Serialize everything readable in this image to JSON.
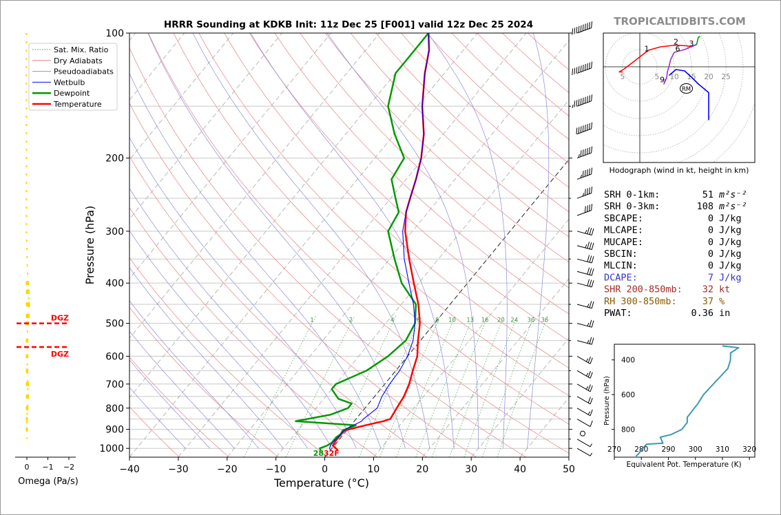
{
  "chart_data": [
    {
      "type": "line",
      "title": "HRRR Sounding at KDKB Init: 11z Dec 25 [F001] valid 12z Dec 25 2024",
      "xlabel": "Temperature (°C)",
      "ylabel": "Pressure (hPa)",
      "xlim": [
        -40,
        50
      ],
      "ylim": [
        1050,
        100
      ],
      "y_scale": "log",
      "skew": "skew-T log-P",
      "x_ticks": [
        "−40",
        "−30",
        "−20",
        "−10",
        "0",
        "10",
        "20",
        "30",
        "40",
        "50"
      ],
      "y_ticks": [
        "100",
        "200",
        "300",
        "400",
        "500",
        "600",
        "700",
        "800",
        "900",
        "1000"
      ],
      "mixing_ratio_labels": [
        "1",
        "2",
        "4",
        "6",
        "8",
        "10",
        "13",
        "16",
        "20",
        "24",
        "30",
        "36"
      ],
      "legend": {
        "placement": "upper-left",
        "entries": [
          {
            "label": "Sat. Mix. Ratio",
            "color": "#2ca02c",
            "style": "dotted"
          },
          {
            "label": "Dry Adiabats",
            "color": "#e08080",
            "style": "solid"
          },
          {
            "label": "Pseudoadiabats",
            "color": "#999999",
            "style": "solid"
          },
          {
            "label": "Wetbulb",
            "color": "#0000ff",
            "style": "solid"
          },
          {
            "label": "Dewpoint",
            "color": "#009900",
            "style": "solid"
          },
          {
            "label": "Temperature",
            "color": "#ff0000",
            "style": "solid"
          }
        ]
      },
      "surface_labels": {
        "dewpoint": "28",
        "temperature": "32F"
      },
      "series": [
        {
          "name": "Temperature",
          "color": "#ff0000",
          "points": [
            [
              1010,
              1.5
            ],
            [
              1000,
              0.8
            ],
            [
              985,
              -0.3
            ],
            [
              960,
              -0.5
            ],
            [
              935,
              -0.5
            ],
            [
              905,
              -0.4
            ],
            [
              880,
              3
            ],
            [
              860,
              6
            ],
            [
              850,
              7
            ],
            [
              800,
              6.5
            ],
            [
              750,
              6
            ],
            [
              700,
              5
            ],
            [
              650,
              3.5
            ],
            [
              600,
              2
            ],
            [
              550,
              -0.5
            ],
            [
              500,
              -3
            ],
            [
              450,
              -6.5
            ],
            [
              400,
              -11
            ],
            [
              350,
              -16
            ],
            [
              300,
              -21.5
            ],
            [
              270,
              -24.5
            ],
            [
              250,
              -26
            ],
            [
              225,
              -28
            ],
            [
              200,
              -30.5
            ],
            [
              175,
              -34
            ],
            [
              150,
              -39
            ],
            [
              125,
              -44
            ],
            [
              110,
              -47
            ],
            [
              100,
              -50
            ]
          ]
        },
        {
          "name": "Dewpoint",
          "color": "#009900",
          "points": [
            [
              1010,
              -2
            ],
            [
              1000,
              -2.5
            ],
            [
              985,
              -1.5
            ],
            [
              970,
              -1
            ],
            [
              960,
              -1
            ],
            [
              940,
              -1
            ],
            [
              925,
              -0.6
            ],
            [
              905,
              -0.8
            ],
            [
              880,
              1
            ],
            [
              860,
              -12
            ],
            [
              830,
              -6
            ],
            [
              800,
              -3.5
            ],
            [
              780,
              -3.5
            ],
            [
              760,
              -7
            ],
            [
              720,
              -10
            ],
            [
              700,
              -10
            ],
            [
              650,
              -6
            ],
            [
              600,
              -4
            ],
            [
              550,
              -3
            ],
            [
              500,
              -4
            ],
            [
              450,
              -7
            ],
            [
              400,
              -13.5
            ],
            [
              350,
              -19
            ],
            [
              300,
              -25
            ],
            [
              270,
              -26
            ],
            [
              250,
              -29
            ],
            [
              225,
              -33
            ],
            [
              200,
              -34
            ],
            [
              175,
              -40
            ],
            [
              150,
              -46
            ],
            [
              125,
              -50
            ],
            [
              110,
              -50
            ],
            [
              100,
              -50
            ]
          ]
        },
        {
          "name": "Wetbulb",
          "color": "#0000ff",
          "points": [
            [
              1010,
              0
            ],
            [
              1000,
              -0.5
            ],
            [
              985,
              -0.8
            ],
            [
              960,
              -0.8
            ],
            [
              935,
              -0.6
            ],
            [
              905,
              -0.6
            ],
            [
              880,
              0.5
            ],
            [
              860,
              1.5
            ],
            [
              850,
              1.5
            ],
            [
              800,
              2.5
            ],
            [
              750,
              1.5
            ],
            [
              700,
              1
            ],
            [
              650,
              0.8
            ],
            [
              600,
              0
            ],
            [
              550,
              -1.5
            ],
            [
              500,
              -4
            ],
            [
              450,
              -7.5
            ],
            [
              400,
              -12
            ],
            [
              350,
              -17
            ],
            [
              300,
              -22
            ],
            [
              270,
              -24.5
            ],
            [
              250,
              -26
            ],
            [
              225,
              -28
            ],
            [
              200,
              -30.5
            ],
            [
              175,
              -34
            ],
            [
              150,
              -39
            ],
            [
              125,
              -44
            ],
            [
              110,
              -47
            ],
            [
              100,
              -50
            ]
          ]
        }
      ],
      "wind_barbs": [
        {
          "p": 100,
          "speed_kt": 115
        },
        {
          "p": 125,
          "speed_kt": 100
        },
        {
          "p": 150,
          "speed_kt": 95
        },
        {
          "p": 175,
          "speed_kt": 80
        },
        {
          "p": 200,
          "speed_kt": 65
        },
        {
          "p": 225,
          "speed_kt": 55
        },
        {
          "p": 250,
          "speed_kt": 45
        },
        {
          "p": 275,
          "speed_kt": 40
        },
        {
          "p": 300,
          "speed_kt": 35
        },
        {
          "p": 325,
          "speed_kt": 35
        },
        {
          "p": 350,
          "speed_kt": 30
        },
        {
          "p": 375,
          "speed_kt": 30
        },
        {
          "p": 400,
          "speed_kt": 30
        },
        {
          "p": 450,
          "speed_kt": 25
        },
        {
          "p": 500,
          "speed_kt": 25
        },
        {
          "p": 550,
          "speed_kt": 25
        },
        {
          "p": 600,
          "speed_kt": 25
        },
        {
          "p": 650,
          "speed_kt": 25
        },
        {
          "p": 700,
          "speed_kt": 25
        },
        {
          "p": 750,
          "speed_kt": 20
        },
        {
          "p": 800,
          "speed_kt": 15
        },
        {
          "p": 850,
          "speed_kt": 10
        },
        {
          "p": 900,
          "speed_kt": 0
        },
        {
          "p": 950,
          "speed_kt": 5
        },
        {
          "p": 1000,
          "speed_kt": 5
        }
      ]
    },
    {
      "type": "line",
      "title": "",
      "xlabel": "Omega (Pa/s)",
      "ylabel": "",
      "x_ticks": [
        "0",
        "−1",
        "−2"
      ],
      "xlim": [
        0.3,
        -2.3
      ],
      "dgz_labels": [
        "DGZ",
        "DGZ"
      ],
      "dgz_levels_hpa": [
        500,
        570
      ],
      "omega_color": "#ffd700",
      "omega_profile": [
        [
          100,
          0.02
        ],
        [
          150,
          0.02
        ],
        [
          200,
          0.02
        ],
        [
          300,
          0.02
        ],
        [
          400,
          -0.05
        ],
        [
          420,
          -0.08
        ],
        [
          450,
          -0.1
        ],
        [
          480,
          -0.08
        ],
        [
          500,
          -0.05
        ],
        [
          550,
          -0.02
        ],
        [
          600,
          -0.02
        ],
        [
          650,
          -0.02
        ],
        [
          700,
          -0.05
        ],
        [
          750,
          -0.05
        ],
        [
          800,
          -0.03
        ],
        [
          850,
          0.0
        ],
        [
          900,
          0.0
        ],
        [
          950,
          0.0
        ]
      ]
    },
    {
      "type": "line",
      "title": "",
      "xlabel": "Equivalent Pot. Temperature (K)",
      "ylabel": "Pressure (hPa)",
      "xlim": [
        270,
        322
      ],
      "ylim": [
        960,
        310
      ],
      "x_ticks": [
        "270",
        "280",
        "290",
        "300",
        "310",
        "320"
      ],
      "y_ticks": [
        "400",
        "600",
        "800"
      ],
      "series": [
        {
          "name": "",
          "color": "#3a9ab0",
          "points": [
            [
              310,
              320
            ],
            [
              316,
              330
            ],
            [
              313,
              360
            ],
            [
              313,
              400
            ],
            [
              312,
              450
            ],
            [
              309,
              500
            ],
            [
              306,
              550
            ],
            [
              303,
              600
            ],
            [
              301,
              650
            ],
            [
              299,
              690
            ],
            [
              297,
              730
            ],
            [
              297,
              760
            ],
            [
              295,
              800
            ],
            [
              291,
              830
            ],
            [
              287,
              845
            ],
            [
              288,
              880
            ],
            [
              282,
              885
            ],
            [
              281,
              900
            ],
            [
              280,
              920
            ],
            [
              279,
              940
            ],
            [
              278,
              955
            ]
          ]
        }
      ]
    },
    {
      "type": "line",
      "title": "Hodograph (wind in kt, height in km)",
      "ring_labels": [
        "5",
        "10",
        "15",
        "20",
        "25"
      ],
      "height_labels": [
        {
          "label": "1",
          "u": 2,
          "v": 4.5
        },
        {
          "label": "2",
          "u": 10.5,
          "v": 6.5
        },
        {
          "label": "3",
          "u": 15,
          "v": 6
        },
        {
          "label": "6",
          "u": 11,
          "v": 4.5
        },
        {
          "label": "9",
          "u": 6.5,
          "v": -4.5
        }
      ],
      "storm_motion_label": "RM",
      "storm_motion": {
        "u": 13.5,
        "v": -6.3
      },
      "segments": [
        {
          "color": "#ff0000",
          "points": [
            [
              -5,
              -1.5
            ],
            [
              -6,
              -1.5
            ],
            [
              -4.5,
              -0.6
            ],
            [
              2.5,
              4.8
            ],
            [
              6,
              5.8
            ],
            [
              10.5,
              6.3
            ],
            [
              13.5,
              6.1
            ],
            [
              15,
              5.8
            ]
          ]
        },
        {
          "color": "#009900",
          "points": [
            [
              15,
              5.8
            ],
            [
              16.5,
              6.5
            ],
            [
              17,
              8.6
            ],
            [
              17.5,
              8.8
            ]
          ]
        },
        {
          "color": "#9932cc",
          "points": [
            [
              16.5,
              6.5
            ],
            [
              13,
              5
            ],
            [
              10,
              4.2
            ],
            [
              9,
              2.2
            ],
            [
              8.5,
              0.2
            ],
            [
              8,
              -1.5
            ],
            [
              7.8,
              -3.2
            ],
            [
              7,
              -5
            ],
            [
              7.5,
              -3.5
            ]
          ]
        },
        {
          "color": "#0000ff",
          "points": [
            [
              8.5,
              -2.5
            ],
            [
              10.5,
              -0.8
            ],
            [
              13,
              -1.2
            ],
            [
              15,
              -3
            ],
            [
              17,
              -5
            ],
            [
              20,
              -7.5
            ],
            [
              20,
              -15.5
            ]
          ]
        }
      ]
    }
  ],
  "site": {
    "watermark": "TROPICALTIDBITS.COM"
  },
  "indices": [
    {
      "label": "SRH 0-1km:",
      "value": "51",
      "unit": "m²s⁻²",
      "color": "#000000"
    },
    {
      "label": "SRH 0-3km:",
      "value": "108",
      "unit": "m²s⁻²",
      "color": "#000000"
    },
    {
      "label": "SBCAPE:",
      "value": "0",
      "unit": "J/kg",
      "color": "#000000"
    },
    {
      "label": "MLCAPE:",
      "value": "0",
      "unit": "J/kg",
      "color": "#000000"
    },
    {
      "label": "MUCAPE:",
      "value": "0",
      "unit": "J/kg",
      "color": "#000000"
    },
    {
      "label": "SBCIN:",
      "value": "0",
      "unit": "J/kg",
      "color": "#000000"
    },
    {
      "label": "MLCIN:",
      "value": "0",
      "unit": "J/kg",
      "color": "#000000"
    },
    {
      "label": "DCAPE:",
      "value": "7",
      "unit": "J/kg",
      "color": "#3333cc"
    },
    {
      "label": "SHR 200-850mb:",
      "value": "32",
      "unit": "kt",
      "color": "#a52a2a"
    },
    {
      "label": "RH 300-850mb:",
      "value": "37",
      "unit": "%",
      "color": "#8b5a00"
    },
    {
      "label": "PWAT:",
      "value": "0.36",
      "unit": "in",
      "color": "#000000"
    }
  ]
}
